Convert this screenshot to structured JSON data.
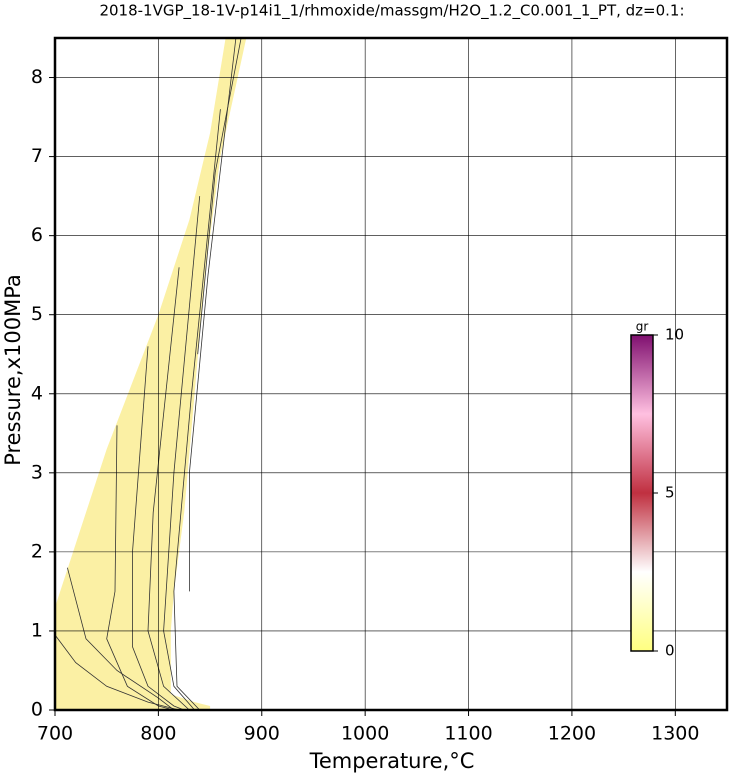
{
  "chart_data": {
    "type": "contour",
    "title": "2018-1VGP_18-1V-p14i1_1/rhmoxide/massgm/H2O_1.2_C0.001_1_PT, dz=0.1:",
    "x_label": "Temperature,°C",
    "y_label": "Pressure,x100MPa",
    "xlim": [
      700,
      1350
    ],
    "ylim": [
      0,
      8.5
    ],
    "xticks": [
      700,
      800,
      900,
      1000,
      1100,
      1200,
      1300
    ],
    "yticks": [
      0,
      1,
      2,
      3,
      4,
      5,
      6,
      7,
      8
    ],
    "grid": true,
    "fill_color": "#fbf0a4",
    "line_color": "#333333",
    "region": {
      "x": [
        700,
        700,
        750,
        800,
        830,
        850,
        865,
        885,
        860,
        845,
        835,
        825,
        815,
        812,
        812,
        835,
        850,
        850
      ],
      "y": [
        0,
        1.3,
        3.3,
        5.0,
        6.2,
        7.3,
        8.5,
        8.5,
        7.0,
        5.5,
        4.0,
        2.5,
        1.5,
        1.0,
        0.2,
        0.1,
        0.05,
        0
      ]
    },
    "lines": [
      {
        "x": [
          700,
          720,
          750,
          790,
          820
        ],
        "y": [
          0.95,
          0.6,
          0.3,
          0.1,
          0
        ]
      },
      {
        "x": [
          712,
          730,
          760,
          800,
          815
        ],
        "y": [
          1.8,
          0.9,
          0.5,
          0.15,
          0
        ]
      },
      {
        "x": [
          760,
          758,
          750,
          770,
          800,
          815
        ],
        "y": [
          3.6,
          1.5,
          0.9,
          0.3,
          0.05,
          0
        ]
      },
      {
        "x": [
          790,
          775,
          775,
          790,
          815,
          825
        ],
        "y": [
          4.6,
          2.0,
          0.8,
          0.3,
          0.05,
          0
        ]
      },
      {
        "x": [
          820,
          795,
          790,
          805,
          830
        ],
        "y": [
          5.6,
          2.5,
          1.0,
          0.3,
          0
        ]
      },
      {
        "x": [
          840,
          815,
          805,
          815,
          835
        ],
        "y": [
          6.5,
          3.0,
          1.0,
          0.3,
          0
        ]
      },
      {
        "x": [
          860,
          832,
          815,
          818,
          840
        ],
        "y": [
          7.6,
          4.0,
          1.5,
          0.3,
          0
        ]
      },
      {
        "x": [
          875,
          848,
          830,
          830
        ],
        "y": [
          8.5,
          5.5,
          3.0,
          1.5
        ]
      },
      {
        "x": [
          880,
          855,
          838
        ],
        "y": [
          8.5,
          6.8,
          4.5
        ]
      }
    ],
    "colorbar": {
      "label": "gr",
      "lim": [
        0,
        10
      ],
      "ticks": [
        0,
        5,
        10
      ],
      "colors": [
        "#ffff80",
        "#ffffff",
        "#c03040",
        "#ffc0e0",
        "#801070"
      ]
    }
  }
}
